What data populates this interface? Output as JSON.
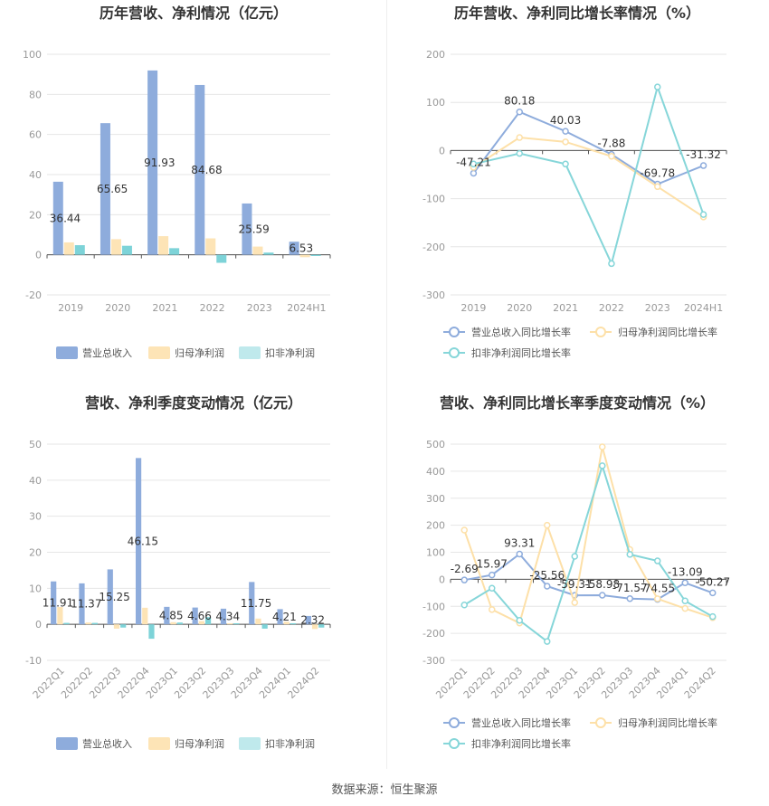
{
  "source_text": "数据来源：恒生聚源",
  "colors": {
    "revenue": "#8eacdc",
    "net_profit": "#fde4b6",
    "deducted_profit": "#7dd3d8",
    "deducted_profit_legend": "#bfe9ec",
    "revenue_growth_line": "#8eacdc",
    "net_profit_growth_line": "#fde0a8",
    "deducted_growth_line": "#86d6d9",
    "grid": "#e6e6e6",
    "axis_text": "#999999",
    "title": "#333333"
  },
  "chart_data": [
    {
      "id": "annual_bar",
      "type": "bar",
      "title": "历年营收、净利情况（亿元）",
      "categories": [
        "2019",
        "2020",
        "2021",
        "2022",
        "2023",
        "2024H1"
      ],
      "series": [
        {
          "name": "营业总收入",
          "values": [
            36.44,
            65.65,
            91.93,
            84.68,
            25.59,
            6.53
          ],
          "labels": [
            "36.44",
            "65.65",
            "91.93",
            "84.68",
            "25.59",
            "6.53"
          ]
        },
        {
          "name": "归母净利润",
          "values": [
            6.2,
            7.8,
            9.3,
            8.2,
            4.1,
            -1.2
          ]
        },
        {
          "name": "扣非净利润",
          "values": [
            4.8,
            4.5,
            3.3,
            -4.0,
            1.1,
            -0.6
          ]
        }
      ],
      "ylim": [
        -20,
        100
      ],
      "yticks": [
        -20,
        0,
        20,
        40,
        60,
        80,
        100
      ],
      "grid": true,
      "legend": "bottom"
    },
    {
      "id": "annual_line",
      "type": "line",
      "title": "历年营收、净利同比增长率情况（%）",
      "categories": [
        "2019",
        "2020",
        "2021",
        "2022",
        "2023",
        "2024H1"
      ],
      "series": [
        {
          "name": "营业总收入同比增长率",
          "values": [
            -47.21,
            80.18,
            40.03,
            -7.88,
            -69.78,
            -31.32
          ],
          "labels": [
            "-47.21",
            "80.18",
            "40.03",
            "-7.88",
            "-69.78",
            "-31.32"
          ]
        },
        {
          "name": "归母净利润同比增长率",
          "values": [
            -35,
            27,
            18,
            -12,
            -75,
            -138
          ]
        },
        {
          "name": "扣非净利润同比增长率",
          "values": [
            -28,
            -6,
            -28,
            -235,
            132,
            -133
          ]
        }
      ],
      "ylim": [
        -300,
        200
      ],
      "yticks": [
        -300,
        -200,
        -100,
        0,
        100,
        200
      ],
      "grid": true,
      "legend": "bottom"
    },
    {
      "id": "quarter_bar",
      "type": "bar",
      "title": "营收、净利季度变动情况（亿元）",
      "categories": [
        "2022Q1",
        "2022Q2",
        "2022Q3",
        "2022Q4",
        "2023Q1",
        "2023Q2",
        "2023Q3",
        "2023Q4",
        "2024Q1",
        "2024Q2"
      ],
      "series": [
        {
          "name": "营业总收入",
          "values": [
            11.91,
            11.37,
            15.25,
            46.15,
            4.85,
            4.66,
            4.34,
            11.75,
            4.21,
            2.32
          ],
          "labels": [
            "11.91",
            "11.37",
            "15.25",
            "46.15",
            "4.85",
            "4.66",
            "4.34",
            "11.75",
            "4.21",
            "2.32"
          ]
        },
        {
          "name": "归母净利润",
          "values": [
            4.8,
            0.5,
            -1.2,
            4.6,
            0.6,
            0.9,
            0.3,
            1.6,
            0.7,
            -1.3
          ]
        },
        {
          "name": "扣非净利润",
          "values": [
            0.4,
            0.4,
            -0.9,
            -4.0,
            0.5,
            2.0,
            0.3,
            -1.2,
            0.3,
            -0.9
          ]
        }
      ],
      "ylim": [
        -10,
        50
      ],
      "yticks": [
        -10,
        0,
        10,
        20,
        30,
        40,
        50
      ],
      "grid": true,
      "legend": "bottom"
    },
    {
      "id": "quarter_line",
      "type": "line",
      "title": "营收、净利同比增长率季度变动情况（%）",
      "categories": [
        "2022Q1",
        "2022Q2",
        "2022Q3",
        "2022Q4",
        "2023Q1",
        "2023Q2",
        "2023Q3",
        "2023Q4",
        "2024Q1",
        "2024Q2"
      ],
      "series": [
        {
          "name": "营业总收入同比增长率",
          "values": [
            -2.69,
            15.97,
            93.31,
            -25.56,
            -59.31,
            -58.98,
            -71.57,
            -74.55,
            -13.09,
            -50.27
          ],
          "labels": [
            "-2.69",
            "15.97",
            "93.31",
            "-25.56",
            "-59.31",
            "-58.98",
            "-71.57",
            "-74.55",
            "-13.09",
            "-50.27"
          ]
        },
        {
          "name": "归母净利润同比增长率",
          "values": [
            182,
            -112,
            -162,
            200,
            -86,
            490,
            110,
            -72,
            -108,
            -142
          ]
        },
        {
          "name": "扣非净利润同比增长率",
          "values": [
            -95,
            -33,
            -152,
            -230,
            85,
            420,
            92,
            68,
            -80,
            -138
          ]
        }
      ],
      "ylim": [
        -300,
        500
      ],
      "yticks": [
        -300,
        -200,
        -100,
        0,
        100,
        200,
        300,
        400,
        500
      ],
      "grid": true,
      "legend": "bottom"
    }
  ]
}
